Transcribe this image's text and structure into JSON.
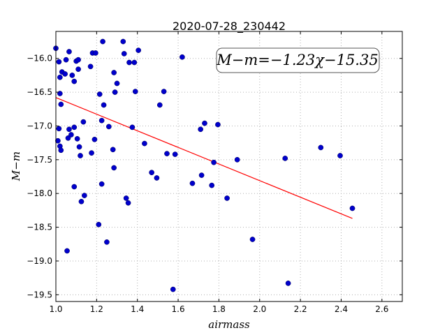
{
  "chart_data": {
    "type": "scatter",
    "title": "2020-07-28_230442",
    "xlabel": "airmass",
    "ylabel": "M−m",
    "xlim": [
      1.0,
      2.7
    ],
    "ylim": [
      -19.6,
      -15.6
    ],
    "y_inverted": true,
    "xticks": [
      1.0,
      1.2,
      1.4,
      1.6,
      1.8,
      2.0,
      2.2,
      2.4,
      2.6
    ],
    "xtick_labels": [
      "1.0",
      "1.2",
      "1.4",
      "1.6",
      "1.8",
      "2.0",
      "2.2",
      "2.4",
      "2.6"
    ],
    "yticks": [
      -16.0,
      -16.5,
      -17.0,
      -17.5,
      -18.0,
      -18.5,
      -19.0,
      -19.5
    ],
    "ytick_labels": [
      "−16.0",
      "−16.5",
      "−17.0",
      "−17.5",
      "−18.0",
      "−18.5",
      "−19.0",
      "−19.5"
    ],
    "grid": true,
    "annotation": "M−m=−1.23χ−15.35",
    "points": [
      [
        1.0,
        -15.85
      ],
      [
        1.015,
        -16.05
      ],
      [
        1.02,
        -16.28
      ],
      [
        1.03,
        -16.2
      ],
      [
        1.045,
        -16.23
      ],
      [
        1.05,
        -16.02
      ],
      [
        1.065,
        -15.9
      ],
      [
        1.08,
        -16.25
      ],
      [
        1.09,
        -16.34
      ],
      [
        1.1,
        -16.04
      ],
      [
        1.11,
        -16.16
      ],
      [
        1.11,
        -16.02
      ],
      [
        1.18,
        -15.92
      ],
      [
        1.195,
        -15.92
      ],
      [
        1.23,
        -15.75
      ],
      [
        1.33,
        -15.75
      ],
      [
        1.335,
        -15.93
      ],
      [
        1.36,
        -16.06
      ],
      [
        1.385,
        -16.06
      ],
      [
        1.405,
        -15.88
      ],
      [
        1.62,
        -15.98
      ],
      [
        1.02,
        -16.52
      ],
      [
        1.025,
        -16.68
      ],
      [
        1.17,
        -16.12
      ],
      [
        1.215,
        -16.53
      ],
      [
        1.235,
        -16.69
      ],
      [
        1.285,
        -16.21
      ],
      [
        1.29,
        -16.5
      ],
      [
        1.3,
        -16.37
      ],
      [
        1.39,
        -16.49
      ],
      [
        1.51,
        -16.69
      ],
      [
        1.53,
        -16.49
      ],
      [
        1.015,
        -17.04
      ],
      [
        1.06,
        -17.18
      ],
      [
        1.065,
        -17.05
      ],
      [
        1.075,
        -17.13
      ],
      [
        1.09,
        -17.02
      ],
      [
        1.105,
        -17.19
      ],
      [
        1.135,
        -16.94
      ],
      [
        1.19,
        -17.2
      ],
      [
        1.225,
        -16.92
      ],
      [
        1.26,
        -17.01
      ],
      [
        1.375,
        -17.02
      ],
      [
        1.01,
        -17.22
      ],
      [
        1.02,
        -17.3
      ],
      [
        1.025,
        -17.36
      ],
      [
        1.115,
        -17.31
      ],
      [
        1.12,
        -17.44
      ],
      [
        1.175,
        -17.4
      ],
      [
        1.28,
        -17.35
      ],
      [
        1.435,
        -17.26
      ],
      [
        1.545,
        -17.41
      ],
      [
        1.585,
        -17.42
      ],
      [
        1.71,
        -17.05
      ],
      [
        1.73,
        -16.96
      ],
      [
        1.795,
        -16.98
      ],
      [
        1.285,
        -17.62
      ],
      [
        1.09,
        -17.9
      ],
      [
        1.225,
        -17.86
      ],
      [
        1.47,
        -17.69
      ],
      [
        1.495,
        -17.77
      ],
      [
        1.67,
        -17.85
      ],
      [
        1.715,
        -17.73
      ],
      [
        1.765,
        -17.88
      ],
      [
        1.775,
        -17.54
      ],
      [
        1.89,
        -17.5
      ],
      [
        2.125,
        -17.48
      ],
      [
        2.3,
        -17.32
      ],
      [
        2.395,
        -17.44
      ],
      [
        1.14,
        -18.03
      ],
      [
        1.125,
        -18.12
      ],
      [
        1.345,
        -18.07
      ],
      [
        1.355,
        -18.14
      ],
      [
        1.84,
        -18.07
      ],
      [
        2.455,
        -18.22
      ],
      [
        1.21,
        -18.46
      ],
      [
        1.25,
        -18.72
      ],
      [
        1.055,
        -18.85
      ],
      [
        1.965,
        -18.68
      ],
      [
        1.575,
        -19.42
      ],
      [
        2.14,
        -19.33
      ]
    ],
    "fit_line": {
      "slope": -1.23,
      "intercept": -15.35,
      "x_range": [
        1.0,
        2.455
      ]
    },
    "colors": {
      "points": "#0000cc",
      "fit": "#ff0000",
      "grid": "#b0b0b0"
    }
  }
}
